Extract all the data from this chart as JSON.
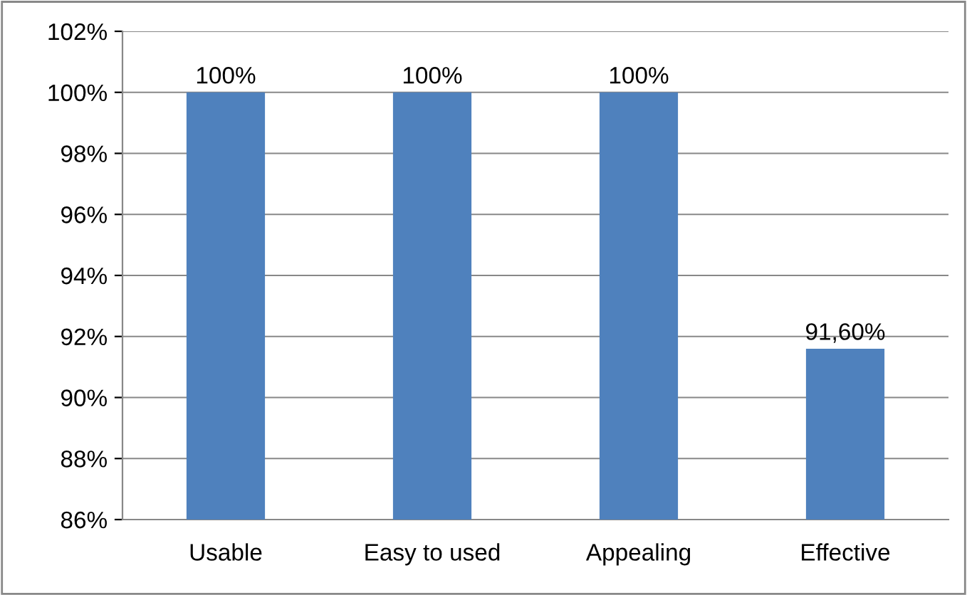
{
  "chart_data": {
    "type": "bar",
    "categories": [
      "Usable",
      "Easy to used",
      "Appealing",
      "Effective"
    ],
    "values": [
      100,
      100,
      100,
      91.6
    ],
    "color": "#4f81bd",
    "value_labels": [
      "100%",
      "100%",
      "100%",
      "91,60%"
    ],
    "ylim": [
      86,
      102
    ],
    "yticks": [
      {
        "value": 86,
        "label": "86%"
      },
      {
        "value": 88,
        "label": "88%"
      },
      {
        "value": 90,
        "label": "90%"
      },
      {
        "value": 92,
        "label": "92%"
      },
      {
        "value": 94,
        "label": "94%"
      },
      {
        "value": 96,
        "label": "96%"
      },
      {
        "value": 98,
        "label": "98%"
      },
      {
        "value": 100,
        "label": "100%"
      },
      {
        "value": 102,
        "label": "102%"
      }
    ],
    "grid": "y",
    "legend": false
  }
}
